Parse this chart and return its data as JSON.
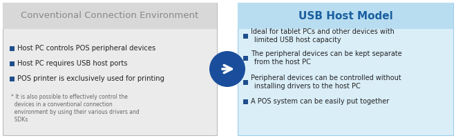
{
  "left_title": "Conventional Connection Environment",
  "left_bg": "#ebebeb",
  "left_title_color": "#888888",
  "left_bullet_color": "#1f4e8c",
  "left_bullets": [
    "Host PC controls POS peripheral devices",
    "Host PC requires USB host ports",
    "POS printer is exclusively used for printing"
  ],
  "left_note_color": "#666666",
  "left_note_lines": [
    "* It is also possible to effectively control the",
    "  devices in a conventional connection",
    "  environment by using their various drivers and",
    "  SDKs"
  ],
  "right_title": "USB Host Model",
  "right_bg": "#daeef8",
  "right_header_bg": "#b8ddf0",
  "right_title_color": "#1a5fa0",
  "right_bullet_color": "#1f4e8c",
  "right_bullets": [
    [
      "Ideal for tablet PCs and other devices with",
      "limited USB host capacity"
    ],
    [
      "The peripheral devices can be kept separate",
      "from the host PC"
    ],
    [
      "Peripheral devices can be controlled without",
      "installing drivers to the host PC"
    ],
    [
      "A POS system can be easily put together"
    ]
  ],
  "arrow_bg": "#1a4e9c",
  "arrow_color": "#ffffff",
  "border_color": "#bbbbbb",
  "fig_bg": "#ffffff"
}
